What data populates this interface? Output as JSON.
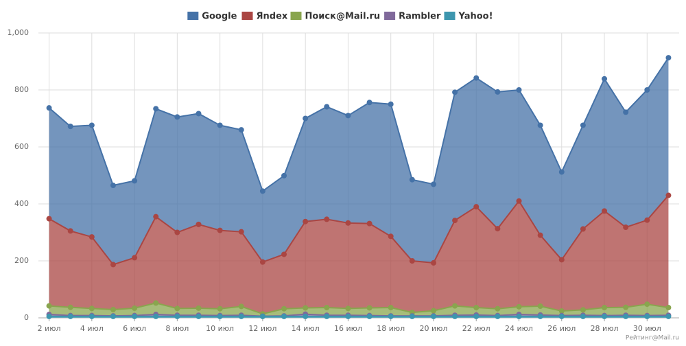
{
  "chart_data": {
    "type": "stacked-area",
    "categories": [
      "2 июл",
      null,
      "4 июл",
      null,
      "6 июл",
      null,
      "8 июл",
      null,
      "10 июл",
      null,
      "12 июл",
      null,
      "14 июл",
      null,
      "16 июл",
      null,
      "18 июл",
      null,
      "20 июл",
      null,
      "22 июл",
      null,
      "24 июл",
      null,
      "26 июл",
      null,
      "28 июл",
      null,
      "30 июл",
      null
    ],
    "series": [
      {
        "name": "Google",
        "color": "#4572A7",
        "values": [
          389,
          367,
          392,
          278,
          270,
          379,
          405,
          389,
          369,
          358,
          249,
          276,
          362,
          395,
          377,
          425,
          464,
          285,
          276,
          450,
          452,
          480,
          390,
          386,
          308,
          364,
          464,
          404,
          457,
          483
        ]
      },
      {
        "name": "Яndex",
        "color": "#AA4643",
        "values": [
          306,
          268,
          251,
          158,
          177,
          303,
          267,
          294,
          275,
          262,
          182,
          191,
          303,
          310,
          300,
          296,
          250,
          181,
          168,
          300,
          354,
          281,
          371,
          249,
          180,
          284,
          339,
          281,
          295,
          394
        ]
      },
      {
        "name": "Поиск@Mail.ru",
        "color": "#89A54E",
        "values": [
          30,
          29,
          25,
          22,
          26,
          40,
          24,
          25,
          24,
          31,
          8,
          25,
          22,
          27,
          24,
          27,
          29,
          12,
          18,
          33,
          26,
          24,
          27,
          31,
          16,
          19,
          28,
          28,
          40,
          27
        ]
      },
      {
        "name": "Rambler",
        "color": "#80699B",
        "values": [
          7,
          3,
          3,
          2,
          3,
          7,
          4,
          4,
          3,
          4,
          1,
          2,
          8,
          4,
          4,
          3,
          2,
          2,
          2,
          4,
          5,
          3,
          7,
          5,
          3,
          4,
          3,
          4,
          3,
          4
        ]
      },
      {
        "name": "Yahoo!",
        "color": "#3D96AE",
        "values": [
          5,
          5,
          5,
          5,
          5,
          5,
          5,
          5,
          5,
          5,
          5,
          5,
          5,
          5,
          5,
          5,
          5,
          5,
          5,
          5,
          5,
          5,
          5,
          5,
          5,
          5,
          5,
          5,
          5,
          5
        ]
      }
    ],
    "ylim": [
      0,
      1000
    ],
    "yticks": [
      0,
      200,
      400,
      600,
      800,
      {
        "value": 1000,
        "label": "1,000"
      }
    ],
    "grid": true,
    "legend": "top",
    "credit": "Рейтинг@Mail.ru"
  }
}
